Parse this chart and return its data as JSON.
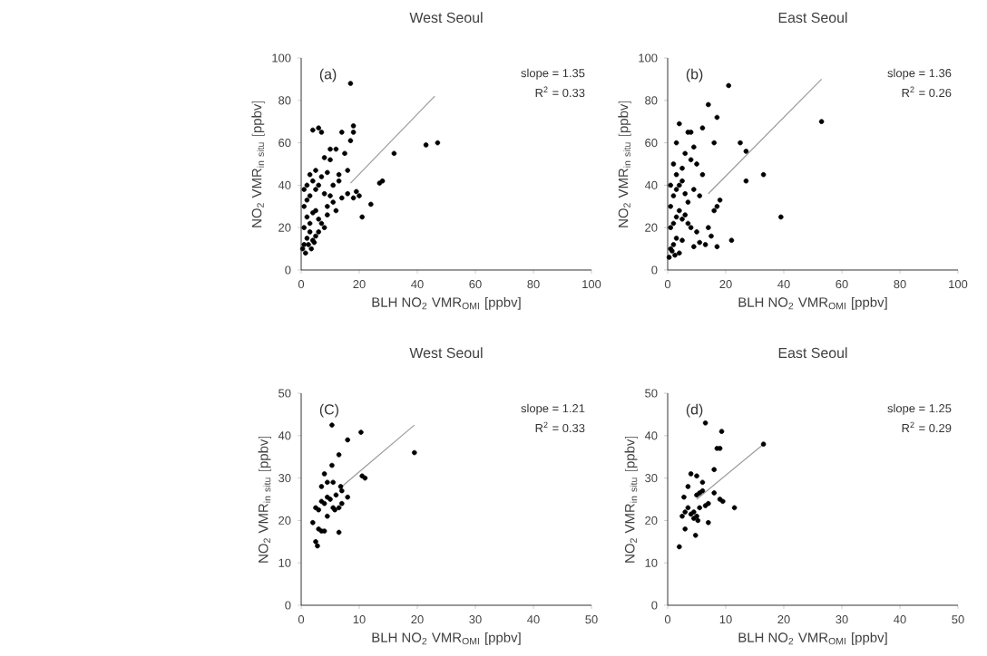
{
  "chart_data": [
    {
      "type": "scatter",
      "title": "West Seoul",
      "xlabel": "BLH NO$_{2}$ VMR$_{OMI}$ [ppbv]",
      "ylabel": "\\mathrm{NO_{2}\\ VMR_{in\\ situ}\\ [ppbv]}",
      "xlim": [
        0,
        100
      ],
      "ylim": [
        0,
        100
      ],
      "xticks": [
        0,
        20,
        40,
        60,
        80,
        100
      ],
      "yticks": [
        0,
        20,
        40,
        60,
        80,
        100
      ],
      "annotations": [
        "(a)",
        "slope = 1.35",
        "R$^{2}$ = 0.33"
      ],
      "series": [
        {
          "marker": "circle",
          "color": "#000000",
          "x": [
            17,
            47,
            43,
            32,
            28,
            27,
            24,
            21,
            18,
            18,
            14,
            6,
            4,
            7,
            12,
            17,
            10,
            15,
            8,
            10,
            16,
            19,
            13,
            11,
            9,
            5,
            3,
            2,
            1,
            1,
            2,
            3,
            4,
            5,
            6,
            7,
            8,
            9,
            10,
            11,
            12,
            13,
            1,
            2,
            3,
            4,
            5,
            6,
            7,
            8,
            1,
            2,
            3,
            4,
            5,
            6,
            0.5,
            1.5,
            2.5,
            3.5,
            4.5,
            9,
            14,
            16,
            18,
            20
          ],
          "values": [
            88,
            60,
            59,
            55,
            42,
            41,
            31,
            25,
            68,
            65,
            65,
            67,
            66,
            65,
            57,
            61,
            57,
            55,
            53,
            52,
            47,
            37,
            45,
            40,
            46,
            47,
            45,
            40,
            38,
            30,
            33,
            35,
            42,
            38,
            40,
            44,
            36,
            30,
            35,
            32,
            28,
            42,
            20,
            25,
            22,
            27,
            28,
            24,
            22,
            20,
            12,
            15,
            18,
            14,
            16,
            18,
            10,
            8,
            12,
            10,
            13,
            26,
            34,
            36,
            34,
            35
          ]
        },
        {
          "type": "line",
          "marker": "none",
          "color": "#9a9a9a",
          "x": [
            17,
            46
          ],
          "values": [
            41,
            82
          ]
        }
      ]
    },
    {
      "type": "scatter",
      "title": "East Seoul",
      "xlabel": "BLH NO$_{2}$ VMR$_{OMI}$ [ppbv]",
      "ylabel": "\\mathrm{NO_{2}\\ VMR_{in\\ situ}\\ [ppbv]}",
      "xlim": [
        0,
        100
      ],
      "ylim": [
        0,
        100
      ],
      "xticks": [
        0,
        20,
        40,
        60,
        80,
        100
      ],
      "yticks": [
        0,
        20,
        40,
        60,
        80,
        100
      ],
      "annotations": [
        "(b)",
        "slope = 1.36",
        "R$^{2}$ = 0.26"
      ],
      "series": [
        {
          "marker": "circle",
          "color": "#000000",
          "x": [
            21,
            53,
            14,
            17,
            4,
            7,
            8,
            3,
            12,
            25,
            27,
            27,
            33,
            39,
            22,
            16,
            18,
            17,
            16,
            13,
            11,
            9,
            17,
            2,
            1,
            3,
            5,
            6,
            8,
            10,
            12,
            1,
            2,
            3,
            4,
            5,
            6,
            7,
            9,
            11,
            1,
            2,
            3,
            4,
            5,
            6,
            7,
            8,
            1,
            2,
            3,
            4,
            5,
            0.5,
            1.5,
            2.5,
            10,
            14,
            15,
            9
          ],
          "values": [
            87,
            70,
            78,
            72,
            69,
            65,
            65,
            60,
            67,
            60,
            56,
            42,
            45,
            25,
            14,
            60,
            33,
            30,
            28,
            12,
            13,
            11,
            11,
            50,
            40,
            45,
            48,
            55,
            52,
            50,
            45,
            30,
            35,
            38,
            40,
            42,
            36,
            32,
            38,
            35,
            20,
            22,
            25,
            28,
            24,
            26,
            22,
            20,
            10,
            12,
            15,
            8,
            14,
            6,
            9,
            7,
            18,
            20,
            16,
            58
          ]
        },
        {
          "type": "line",
          "marker": "none",
          "color": "#9a9a9a",
          "x": [
            14,
            53
          ],
          "values": [
            36,
            90
          ]
        }
      ]
    },
    {
      "type": "scatter",
      "title": "West Seoul",
      "xlabel": "BLH NO$_{2}$ VMR$_{OMI}$ [ppbv]",
      "ylabel": "\\mathrm{NO_{2}\\ VMR_{in\\ situ}\\ [ppbv]}",
      "xlim": [
        0,
        50
      ],
      "ylim": [
        0,
        50
      ],
      "xticks": [
        0,
        10,
        20,
        30,
        40,
        50
      ],
      "yticks": [
        0,
        10,
        20,
        30,
        40,
        50
      ],
      "annotations": [
        "(C)",
        "slope = 1.21",
        "R$^{2}$ = 0.33"
      ],
      "series": [
        {
          "marker": "circle",
          "color": "#000000",
          "x": [
            5.3,
            10.3,
            8,
            6.5,
            5.3,
            19.5,
            10.5,
            11,
            4,
            4.5,
            5.5,
            3.5,
            6.8,
            7,
            6,
            8,
            4.5,
            5,
            3.5,
            4,
            2.5,
            3,
            5.5,
            6.5,
            7,
            2,
            3,
            3.5,
            4,
            6.5,
            2.5,
            2.8,
            5.8,
            4.5
          ],
          "values": [
            42.5,
            40.8,
            39,
            35.5,
            33,
            36,
            30.5,
            30,
            31,
            29,
            29,
            28,
            28,
            27,
            26,
            25.5,
            25.5,
            25,
            24.5,
            24,
            23,
            22.5,
            23,
            23,
            24,
            19.5,
            18,
            17.5,
            17.5,
            17.2,
            15,
            14,
            22.5,
            21
          ]
        },
        {
          "type": "line",
          "marker": "none",
          "color": "#9a9a9a",
          "x": [
            7,
            19.5
          ],
          "values": [
            28,
            42.5
          ]
        }
      ]
    },
    {
      "type": "scatter",
      "title": "East Seoul",
      "xlabel": "BLH NO$_{2}$ VMR$_{OMI}$ [ppbv]",
      "ylabel": "\\mathrm{NO_{2}\\ VMR_{in\\ situ}\\ [ppbv]}",
      "xlim": [
        0,
        50
      ],
      "ylim": [
        0,
        50
      ],
      "xticks": [
        0,
        10,
        20,
        30,
        40,
        50
      ],
      "yticks": [
        0,
        10,
        20,
        30,
        40,
        50
      ],
      "annotations": [
        "(d)",
        "slope = 1.25",
        "R$^{2}$ = 0.29"
      ],
      "series": [
        {
          "marker": "circle",
          "color": "#000000",
          "x": [
            6.5,
            9.3,
            8.5,
            9,
            16.5,
            8,
            4,
            5,
            3.5,
            6,
            2.8,
            5,
            5.5,
            6,
            8,
            9,
            9.5,
            11.5,
            7,
            6.5,
            3,
            3.5,
            4,
            4.5,
            5,
            5.2,
            4.5,
            2.5,
            3,
            4.8,
            7,
            2,
            5.5
          ],
          "values": [
            43,
            41,
            37,
            37,
            38,
            32,
            31,
            30.5,
            28,
            29,
            25.5,
            26,
            26.5,
            27,
            26.5,
            25,
            24.5,
            23,
            24,
            23.5,
            22,
            23,
            21.5,
            22,
            21,
            20,
            20.5,
            21,
            18,
            16.5,
            19.5,
            13.8,
            23
          ]
        },
        {
          "type": "line",
          "marker": "none",
          "color": "#9a9a9a",
          "x": [
            5,
            16.5
          ],
          "values": [
            25,
            38
          ]
        }
      ]
    }
  ]
}
